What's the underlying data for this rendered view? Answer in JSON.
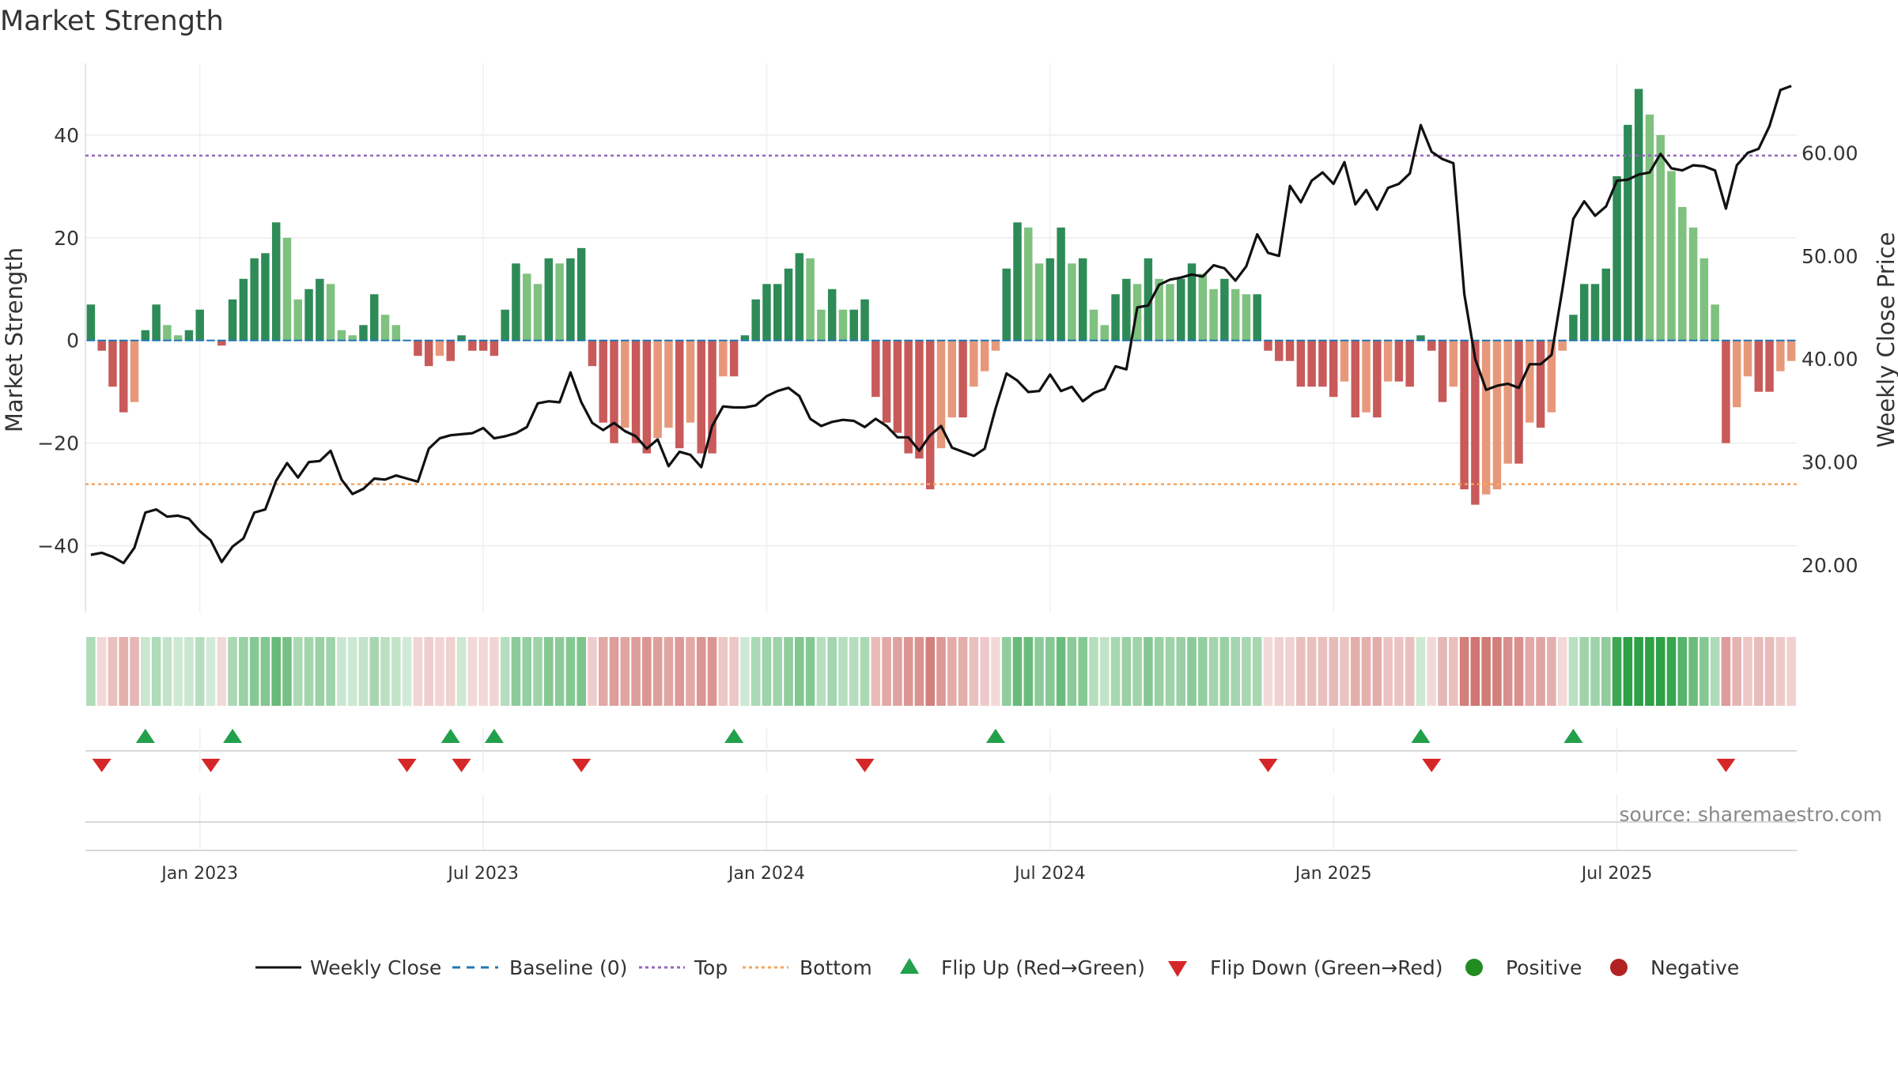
{
  "chart_data": {
    "type": "bar+line",
    "title": "Market Strength",
    "ylabel_left": "Market Strength",
    "ylabel_right": "Weekly Close Price",
    "left_ticks": [
      40,
      20,
      0,
      -20,
      -40
    ],
    "left_tick_labels": [
      "40",
      "20",
      "0",
      "−20",
      "−40"
    ],
    "ylim_left": [
      -53,
      54
    ],
    "right_ticks": [
      60,
      50,
      40,
      30,
      20
    ],
    "right_tick_labels": [
      "60.00",
      "50.00",
      "40.00",
      "30.00",
      "20.00"
    ],
    "ylim_right": [
      15.4,
      68.7
    ],
    "top_line": 36,
    "bottom_line": -28,
    "x_tick_labels": [
      "Jan 2023",
      "Jul 2023",
      "Jan 2024",
      "Jul 2024",
      "Jan 2025",
      "Jul 2025"
    ],
    "x_tick_weeks": [
      10,
      36,
      62,
      88,
      114,
      140
    ],
    "strength": [
      7,
      -2,
      -9,
      -14,
      -12,
      2,
      7,
      3,
      1,
      2,
      6,
      0,
      -1,
      8,
      12,
      16,
      17,
      23,
      20,
      8,
      10,
      12,
      11,
      2,
      1,
      3,
      9,
      5,
      3,
      0,
      -3,
      -5,
      -3,
      -4,
      1,
      -2,
      -2,
      -3,
      6,
      15,
      13,
      11,
      16,
      15,
      16,
      18,
      -5,
      -16,
      -20,
      -17,
      -20,
      -22,
      -19,
      -17,
      -21,
      -16,
      -22,
      -22,
      -7,
      -7,
      1,
      8,
      11,
      11,
      14,
      17,
      16,
      6,
      10,
      6,
      6,
      8,
      -11,
      -16,
      -18,
      -22,
      -23,
      -29,
      -21,
      -15,
      -15,
      -9,
      -6,
      -2,
      14,
      23,
      22,
      15,
      16,
      22,
      15,
      16,
      6,
      3,
      9,
      12,
      11,
      16,
      12,
      11,
      12,
      15,
      13,
      10,
      12,
      10,
      9,
      9,
      -2,
      -4,
      -4,
      -9,
      -9,
      -9,
      -11,
      -8,
      -15,
      -14,
      -15,
      -8,
      -8,
      -9,
      1,
      -2,
      -12,
      -9,
      -29,
      -32,
      -30,
      -29,
      -24,
      -24,
      -16,
      -17,
      -14,
      -2,
      5,
      11,
      11,
      14,
      32,
      42,
      49,
      44,
      40,
      33,
      26,
      22,
      16,
      7,
      -20,
      -13,
      -7,
      -10,
      -10,
      -6,
      -4
    ],
    "price": [
      21.0,
      21.2,
      20.8,
      20.2,
      21.7,
      25.1,
      25.4,
      24.7,
      24.8,
      24.5,
      23.3,
      22.4,
      20.3,
      21.8,
      22.6,
      25.1,
      25.4,
      28.2,
      29.9,
      28.5,
      30.0,
      30.1,
      31.1,
      28.3,
      26.9,
      27.4,
      28.4,
      28.3,
      28.7,
      28.4,
      28.1,
      31.3,
      32.3,
      32.6,
      32.7,
      32.8,
      33.3,
      32.3,
      32.5,
      32.8,
      33.4,
      35.7,
      35.9,
      35.8,
      38.7,
      35.8,
      33.8,
      33.1,
      33.8,
      33.0,
      32.5,
      31.3,
      32.2,
      29.6,
      31.0,
      30.7,
      29.5,
      33.5,
      35.4,
      35.3,
      35.3,
      35.5,
      36.4,
      36.9,
      37.2,
      36.4,
      34.2,
      33.5,
      33.9,
      34.1,
      34.0,
      33.4,
      34.2,
      33.5,
      32.4,
      32.4,
      31.1,
      32.6,
      33.5,
      31.4,
      31.0,
      30.6,
      31.3,
      35.2,
      38.6,
      37.9,
      36.8,
      36.9,
      38.5,
      36.9,
      37.3,
      35.9,
      36.7,
      37.1,
      39.3,
      39.0,
      45.0,
      45.2,
      47.2,
      47.7,
      47.9,
      48.2,
      48.0,
      49.1,
      48.8,
      47.6,
      49.0,
      52.1,
      50.3,
      50.0,
      56.8,
      55.2,
      57.3,
      58.1,
      57.0,
      59.1,
      55.0,
      56.4,
      54.5,
      56.6,
      57.0,
      58.0,
      62.7,
      60.1,
      59.4,
      59.0,
      46.3,
      40.0,
      37.0,
      37.4,
      37.6,
      37.2,
      39.5,
      39.5,
      40.4,
      46.8,
      53.6,
      55.3,
      53.9,
      54.8,
      57.3,
      57.4,
      57.9,
      58.1,
      59.9,
      58.5,
      58.3,
      58.8,
      58.7,
      58.3,
      54.6,
      58.8,
      60.0,
      60.4,
      62.6,
      66.1,
      66.5
    ],
    "flip_up_weeks": [
      5,
      13,
      33,
      37,
      59,
      83,
      122,
      136
    ],
    "flip_down_weeks": [
      1,
      11,
      29,
      34,
      45,
      71,
      108,
      123,
      150
    ],
    "legend": [
      "Weekly Close",
      "Baseline (0)",
      "Top",
      "Bottom",
      "Flip Up (Red→Green)",
      "Flip Down (Green→Red)",
      "Positive",
      "Negative"
    ],
    "source": "source: sharemaestro.com"
  },
  "colors": {
    "pos_dark": "#2e8b57",
    "pos_light": "#7fc17f",
    "neg_dark": "#c85a5a",
    "neg_light": "#e8987a",
    "price_line": "#111111",
    "baseline": "#1f77b4",
    "top_line": "#9467bd",
    "bottom_line": "#f4a460",
    "flip_up": "#22a04b",
    "flip_down": "#d62728",
    "positive_dot": "#228b22",
    "negative_dot": "#b22222"
  }
}
